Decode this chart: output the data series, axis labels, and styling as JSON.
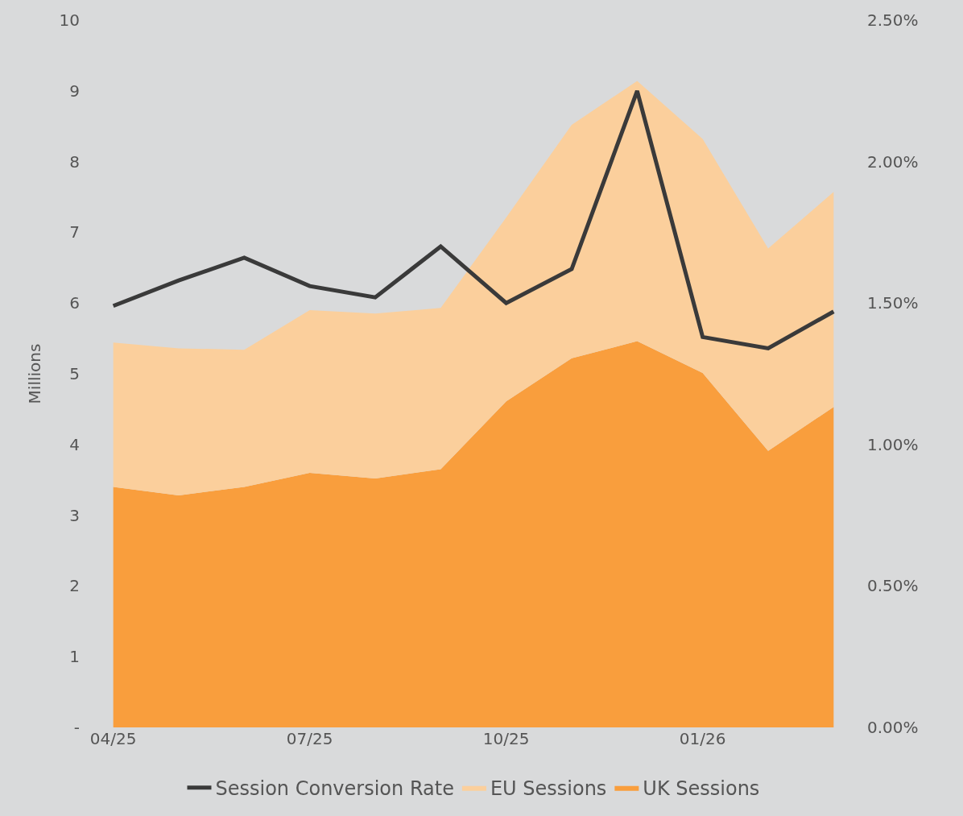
{
  "chart_data": {
    "type": "area",
    "stacked": true,
    "categories": [
      "04/25",
      null,
      null,
      "07/25",
      null,
      null,
      "10/25",
      null,
      null,
      "01/26",
      null,
      null
    ],
    "ylabel": "Millions",
    "ylim": [
      0,
      10
    ],
    "yticks": [
      {
        "value": 0,
        "label": "-"
      },
      1,
      2,
      3,
      4,
      5,
      6,
      7,
      8,
      9,
      10
    ],
    "y2lim": [
      0,
      2.5
    ],
    "y2ticks": [
      {
        "value": 0,
        "label": "0.00%"
      },
      {
        "value": 0.5,
        "label": "0.50%"
      },
      {
        "value": 1,
        "label": "1.00%"
      },
      {
        "value": 1.5,
        "label": "1.50%"
      },
      {
        "value": 2,
        "label": "2.00%"
      },
      {
        "value": 2.5,
        "label": "2.50%"
      }
    ],
    "series": [
      {
        "name": "UK Sessions",
        "color": "#f99e3d",
        "values": [
          3.4,
          3.28,
          3.4,
          3.6,
          3.52,
          3.65,
          4.61,
          5.22,
          5.46,
          5.01,
          3.91,
          4.53
        ]
      },
      {
        "name": "EU Sessions",
        "color": "#fbcf9c",
        "values": [
          2.04,
          2.08,
          1.94,
          2.3,
          2.33,
          2.28,
          2.6,
          3.3,
          3.68,
          3.31,
          2.86,
          3.04
        ]
      },
      {
        "name": "Session Conversion Rate",
        "type": "line",
        "axis": "y2",
        "color": "#3a3a3a",
        "values": [
          1.49,
          1.58,
          1.66,
          1.56,
          1.52,
          1.7,
          1.5,
          1.62,
          2.25,
          1.38,
          1.34,
          1.47
        ]
      }
    ],
    "grid": false,
    "legend": "bottom"
  }
}
